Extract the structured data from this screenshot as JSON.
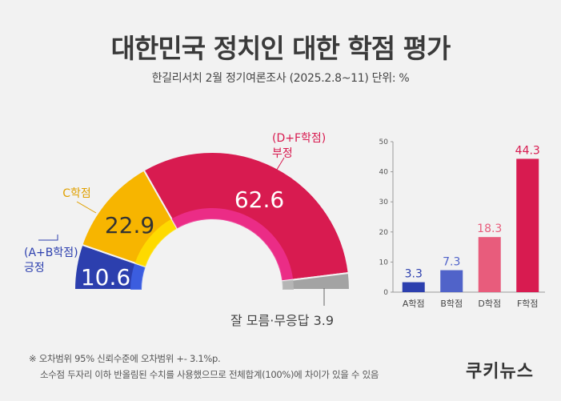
{
  "header": {
    "title": "대한민국 정치인 대한 학점 평가",
    "subtitle": "한길리서치 2월 정기여론조사 (2025.2.8~11) 단위: %"
  },
  "chart_data": [
    {
      "type": "pie",
      "shape": "half-donut",
      "title": "",
      "slices": [
        {
          "label_lines": [
            "(A+B학점)",
            "긍정"
          ],
          "value": 10.6,
          "color": "#2c3fae",
          "value_color": "#ffffff"
        },
        {
          "label_lines": [
            "C학점"
          ],
          "value": 22.9,
          "color": "#f7b500",
          "value_color": "#333333"
        },
        {
          "label_lines": [
            "(D+F학점)",
            "부정"
          ],
          "value": 62.6,
          "color": "#d81b50",
          "value_color": "#ffffff"
        },
        {
          "label_lines": [
            "잘 모름·무응답 3.9"
          ],
          "value": 3.9,
          "color": "#a3a3a3",
          "value_color": "#333333"
        }
      ]
    },
    {
      "type": "bar",
      "title": "",
      "categories": [
        "A학점",
        "B학점",
        "D학점",
        "F학점"
      ],
      "values": [
        3.3,
        7.3,
        18.3,
        44.3
      ],
      "colors": [
        "#2c3fae",
        "#5063c9",
        "#e85c7c",
        "#d81b50"
      ],
      "ylim": [
        0,
        50
      ],
      "yticks": [
        0,
        10,
        20,
        30,
        40,
        50
      ],
      "grid": false
    }
  ],
  "footer": {
    "notes": [
      "※ 오차범위 95% 신뢰수준에 오차범위 +- 3.1%p.",
      "소수점 두자리 이하 반올림된 수치를 사용했으므로 전체합계(100%)에 차이가 있을 수 있음"
    ],
    "brand": "쿠키뉴스"
  }
}
